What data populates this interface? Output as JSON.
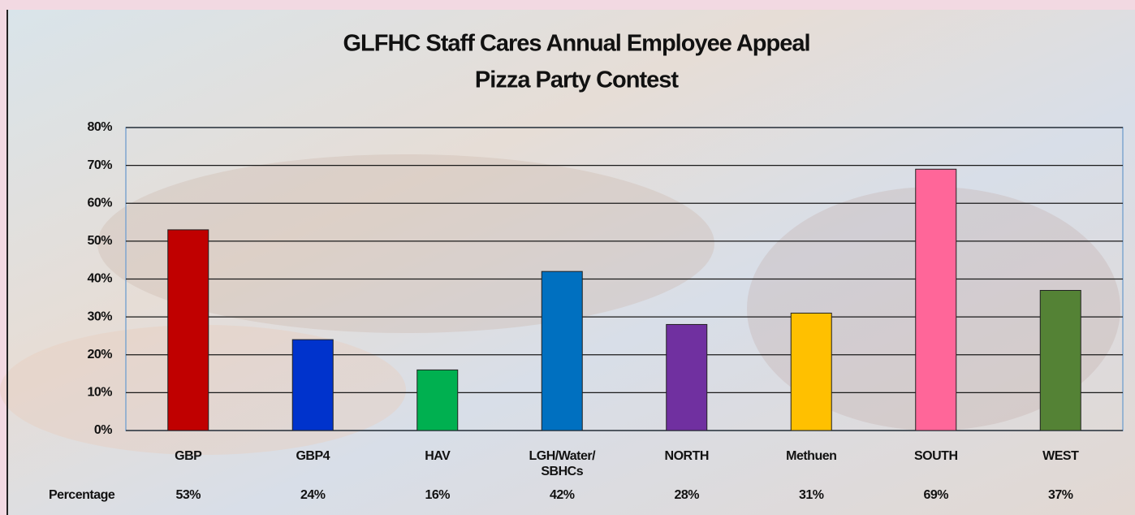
{
  "chart_data": {
    "type": "bar",
    "title": "GLFHC Staff Cares Annual Employee Appeal",
    "subtitle": "Pizza Party Contest",
    "categories": [
      "GBP",
      "GBP4",
      "HAV",
      "LGH/Water/ SBHCs",
      "NORTH",
      "Methuen",
      "SOUTH",
      "WEST"
    ],
    "series": [
      {
        "name": "Percentage",
        "colors": [
          "#c00000",
          "#0033cc",
          "#00b050",
          "#0070c0",
          "#7030a0",
          "#ffc000",
          "#ff6699",
          "#548235"
        ],
        "values": [
          53,
          24,
          16,
          42,
          28,
          31,
          69,
          37
        ],
        "value_labels": [
          "53%",
          "24%",
          "16%",
          "42%",
          "28%",
          "31%",
          "69%",
          "37%"
        ]
      }
    ],
    "ylim": [
      0,
      80
    ],
    "yticks": [
      {
        "value": 0,
        "label": "0%"
      },
      {
        "value": 10,
        "label": "10%"
      },
      {
        "value": 20,
        "label": "20%"
      },
      {
        "value": 30,
        "label": "30%"
      },
      {
        "value": 40,
        "label": "40%"
      },
      {
        "value": 50,
        "label": "50%"
      },
      {
        "value": 60,
        "label": "60%"
      },
      {
        "value": 70,
        "label": "70%"
      },
      {
        "value": 80,
        "label": "80%"
      }
    ],
    "grid": true
  }
}
